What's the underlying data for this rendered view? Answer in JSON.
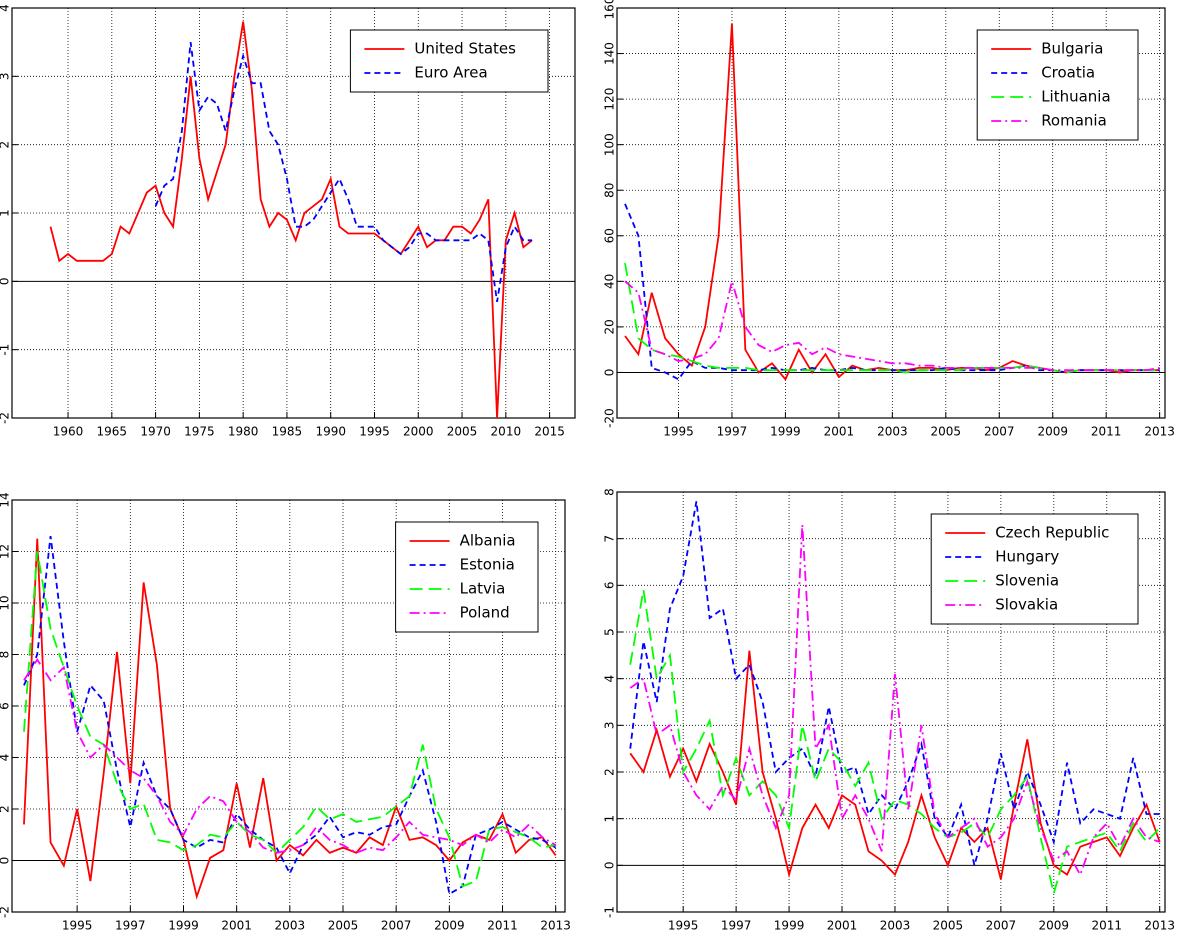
{
  "chart_data": [
    {
      "type": "line",
      "legend": "upper right",
      "grid": true,
      "xlim": [
        1953.6,
        2017.9
      ],
      "ylim": [
        -2,
        4
      ],
      "xticks": [
        1960,
        1965,
        1970,
        1975,
        1980,
        1985,
        1990,
        1995,
        2000,
        2005,
        2010,
        2015
      ],
      "yticks": [
        -2,
        -1,
        0,
        1,
        2,
        3,
        4
      ],
      "x": [
        1958,
        1959,
        1960,
        1961,
        1962,
        1963,
        1964,
        1965,
        1966,
        1967,
        1968,
        1969,
        1970,
        1971,
        1972,
        1973,
        1974,
        1975,
        1976,
        1977,
        1978,
        1979,
        1980,
        1981,
        1982,
        1983,
        1984,
        1985,
        1986,
        1987,
        1988,
        1989,
        1990,
        1991,
        1992,
        1993,
        1994,
        1995,
        1996,
        1997,
        1998,
        1999,
        2000,
        2001,
        2002,
        2003,
        2004,
        2005,
        2006,
        2007,
        2008,
        2009,
        2010,
        2011,
        2012,
        2013
      ],
      "series": [
        {
          "name": "United States",
          "color": "#ff0000",
          "dash": "solid",
          "values": [
            0.8,
            0.3,
            0.4,
            0.3,
            0.3,
            0.3,
            0.3,
            0.4,
            0.8,
            0.7,
            1.0,
            1.3,
            1.4,
            1.0,
            0.8,
            1.8,
            3.0,
            1.8,
            1.2,
            1.6,
            2.0,
            3.0,
            3.8,
            2.8,
            1.2,
            0.8,
            1.0,
            0.9,
            0.6,
            1.0,
            1.1,
            1.2,
            1.5,
            0.8,
            0.7,
            0.7,
            0.7,
            0.7,
            0.6,
            0.5,
            0.4,
            0.6,
            0.8,
            0.5,
            0.6,
            0.6,
            0.8,
            0.8,
            0.7,
            0.9,
            1.2,
            -2.0,
            0.6,
            1.0,
            0.5,
            0.6
          ]
        },
        {
          "name": "Euro Area",
          "color": "#0000ff",
          "dash": "dashed",
          "values": [
            null,
            null,
            null,
            null,
            null,
            null,
            null,
            null,
            null,
            null,
            null,
            null,
            1.1,
            1.4,
            1.5,
            2.2,
            3.5,
            2.5,
            2.7,
            2.6,
            2.2,
            2.8,
            3.3,
            2.9,
            2.9,
            2.2,
            2.0,
            1.5,
            0.8,
            0.8,
            0.9,
            1.1,
            1.3,
            1.5,
            1.2,
            0.8,
            0.8,
            0.8,
            0.6,
            0.5,
            0.4,
            0.5,
            0.7,
            0.7,
            0.6,
            0.6,
            0.6,
            0.6,
            0.6,
            0.7,
            0.6,
            -0.3,
            0.5,
            0.8,
            0.6,
            0.6
          ]
        }
      ]
    },
    {
      "type": "line",
      "legend": "upper right",
      "grid": true,
      "xlim": [
        1992.7,
        2013.2
      ],
      "ylim": [
        -20,
        160
      ],
      "xticks": [
        1995,
        1997,
        1999,
        2001,
        2003,
        2005,
        2007,
        2009,
        2011,
        2013
      ],
      "yticks": [
        -20,
        0,
        20,
        40,
        60,
        80,
        100,
        120,
        140,
        160
      ],
      "x": [
        1993,
        1993.5,
        1994,
        1994.5,
        1995,
        1995.5,
        1996,
        1996.5,
        1997,
        1997.5,
        1998,
        1998.5,
        1999,
        1999.5,
        2000,
        2000.5,
        2001,
        2001.5,
        2002,
        2002.5,
        2003,
        2003.5,
        2004,
        2004.5,
        2005,
        2005.5,
        2006,
        2006.5,
        2007,
        2007.5,
        2008,
        2008.5,
        2009,
        2009.5,
        2010,
        2010.5,
        2011,
        2011.5,
        2012,
        2012.5,
        2013
      ],
      "series": [
        {
          "name": "Bulgaria",
          "color": "#ff0000",
          "dash": "solid",
          "values": [
            16,
            8,
            35,
            15,
            8,
            3,
            20,
            60,
            153,
            10,
            0,
            4,
            -3,
            10,
            0,
            8,
            -2,
            3,
            1,
            2,
            1,
            1,
            2,
            2,
            1,
            2,
            2,
            1,
            2,
            5,
            3,
            2,
            1,
            0,
            1,
            1,
            1,
            0,
            1,
            1,
            1
          ]
        },
        {
          "name": "Croatia",
          "color": "#0000ff",
          "dash": "dashed",
          "values": [
            74,
            60,
            2,
            0,
            -3,
            5,
            2,
            2,
            1,
            1,
            1,
            2,
            1,
            1,
            2,
            1,
            1,
            2,
            1,
            1,
            1,
            1,
            1,
            1,
            2,
            1,
            1,
            1,
            1,
            2,
            3,
            1,
            1,
            0,
            1,
            1,
            1,
            1,
            1,
            1,
            1
          ]
        },
        {
          "name": "Lithuania",
          "color": "#00ff00",
          "dash": "longdash",
          "values": [
            48,
            15,
            10,
            8,
            7,
            5,
            3,
            2,
            2,
            2,
            1,
            1,
            1,
            1,
            1,
            1,
            1,
            1,
            1,
            1,
            1,
            0,
            1,
            1,
            1,
            1,
            2,
            2,
            2,
            2,
            3,
            2,
            1,
            0,
            1,
            1,
            1,
            1,
            1,
            1,
            1
          ]
        },
        {
          "name": "Romania",
          "color": "#ff00ff",
          "dash": "dashdot",
          "values": [
            40,
            35,
            10,
            8,
            5,
            6,
            8,
            15,
            40,
            20,
            12,
            9,
            12,
            13,
            8,
            11,
            8,
            7,
            6,
            5,
            4,
            4,
            3,
            3,
            2,
            2,
            2,
            2,
            2,
            2,
            2,
            2,
            1,
            1,
            1,
            1,
            1,
            1,
            1,
            1,
            2
          ]
        }
      ]
    },
    {
      "type": "line",
      "legend": "upper right",
      "grid": true,
      "xlim": [
        1992.55,
        2013.35
      ],
      "ylim": [
        -2,
        14
      ],
      "xticks": [
        1995,
        1997,
        1999,
        2001,
        2003,
        2005,
        2007,
        2009,
        2011,
        2013
      ],
      "yticks": [
        -2,
        0,
        2,
        4,
        6,
        8,
        10,
        12,
        14
      ],
      "x": [
        1993,
        1993.5,
        1994,
        1994.5,
        1995,
        1995.5,
        1996,
        1996.5,
        1997,
        1997.5,
        1998,
        1998.5,
        1999,
        1999.5,
        2000,
        2000.5,
        2001,
        2001.5,
        2002,
        2002.5,
        2003,
        2003.5,
        2004,
        2004.5,
        2005,
        2005.5,
        2006,
        2006.5,
        2007,
        2007.5,
        2008,
        2008.5,
        2009,
        2009.5,
        2010,
        2010.5,
        2011,
        2011.5,
        2012,
        2012.5,
        2013
      ],
      "series": [
        {
          "name": "Albania",
          "color": "#ff0000",
          "dash": "solid",
          "values": [
            1.4,
            12.5,
            0.7,
            -0.2,
            2.0,
            -0.8,
            3.4,
            8.1,
            3.0,
            10.8,
            7.6,
            2.0,
            0.8,
            -1.4,
            0.1,
            0.4,
            3.0,
            0.5,
            3.2,
            0.0,
            0.6,
            0.2,
            0.8,
            0.3,
            0.5,
            0.3,
            0.9,
            0.6,
            2.1,
            0.8,
            0.9,
            0.6,
            0.0,
            0.7,
            1.0,
            0.8,
            1.8,
            0.3,
            0.8,
            0.9,
            0.2
          ]
        },
        {
          "name": "Estonia",
          "color": "#0000ff",
          "dash": "dashed",
          "values": [
            6.8,
            8.0,
            12.6,
            8.5,
            5.0,
            6.8,
            6.2,
            3.5,
            1.3,
            3.8,
            2.5,
            2.0,
            0.8,
            0.5,
            0.8,
            0.7,
            1.8,
            1.2,
            0.8,
            0.5,
            -0.5,
            0.6,
            1.0,
            1.7,
            0.9,
            1.1,
            1.0,
            1.3,
            1.4,
            2.5,
            3.5,
            1.5,
            -1.3,
            -1.0,
            1.0,
            1.2,
            1.5,
            1.2,
            0.9,
            0.8,
            0.5
          ]
        },
        {
          "name": "Latvia",
          "color": "#00ff00",
          "dash": "longdash",
          "values": [
            5.0,
            12.0,
            9.0,
            7.5,
            6.0,
            4.8,
            4.5,
            3.0,
            2.0,
            2.2,
            0.8,
            0.7,
            0.4,
            0.6,
            1.0,
            0.9,
            1.5,
            1.0,
            0.8,
            0.3,
            0.8,
            1.3,
            2.1,
            1.6,
            1.8,
            1.5,
            1.6,
            1.7,
            2.1,
            2.5,
            4.5,
            2.0,
            0.9,
            -1.0,
            -0.8,
            1.2,
            1.3,
            1.1,
            0.9,
            0.5,
            0.6
          ]
        },
        {
          "name": "Poland",
          "color": "#ff00ff",
          "dash": "dashdot",
          "values": [
            7.0,
            7.8,
            7.0,
            7.5,
            5.0,
            4.0,
            4.5,
            4.0,
            3.5,
            3.2,
            2.5,
            1.5,
            1.0,
            2.0,
            2.5,
            2.3,
            1.5,
            1.1,
            0.5,
            0.3,
            0.4,
            0.6,
            1.3,
            0.8,
            0.6,
            0.3,
            0.5,
            0.4,
            0.9,
            1.5,
            1.0,
            0.9,
            0.8,
            0.6,
            1.0,
            0.7,
            1.2,
            0.9,
            1.4,
            0.9,
            0.6
          ]
        }
      ]
    },
    {
      "type": "line",
      "legend": "upper right",
      "grid": true,
      "xlim": [
        1992.5,
        2013.2
      ],
      "ylim": [
        -1,
        8
      ],
      "xticks": [
        1995,
        1997,
        1999,
        2001,
        2003,
        2005,
        2007,
        2009,
        2011,
        2013
      ],
      "yticks": [
        -1,
        0,
        1,
        2,
        3,
        4,
        5,
        6,
        7,
        8
      ],
      "x": [
        1993,
        1993.5,
        1994,
        1994.5,
        1995,
        1995.5,
        1996,
        1996.5,
        1997,
        1997.5,
        1998,
        1998.5,
        1999,
        1999.5,
        2000,
        2000.5,
        2001,
        2001.5,
        2002,
        2002.5,
        2003,
        2003.5,
        2004,
        2004.5,
        2005,
        2005.5,
        2006,
        2006.5,
        2007,
        2007.5,
        2008,
        2008.5,
        2009,
        2009.5,
        2010,
        2010.5,
        2011,
        2011.5,
        2012,
        2012.5,
        2013
      ],
      "series": [
        {
          "name": "Czech Republic",
          "color": "#ff0000",
          "dash": "solid",
          "values": [
            2.4,
            2.0,
            2.9,
            1.9,
            2.5,
            1.8,
            2.6,
            2.0,
            1.3,
            4.6,
            2.0,
            1.0,
            -0.2,
            0.8,
            1.3,
            0.8,
            1.5,
            1.3,
            0.3,
            0.1,
            -0.2,
            0.5,
            1.5,
            0.6,
            0.0,
            0.8,
            0.5,
            0.8,
            -0.3,
            1.3,
            2.7,
            0.9,
            0.0,
            -0.2,
            0.4,
            0.5,
            0.6,
            0.2,
            0.8,
            1.3,
            0.5
          ]
        },
        {
          "name": "Hungary",
          "color": "#0000ff",
          "dash": "dashed",
          "values": [
            2.5,
            4.8,
            3.5,
            5.5,
            6.2,
            7.8,
            5.3,
            5.5,
            4.0,
            4.3,
            3.5,
            2.0,
            2.3,
            2.5,
            1.9,
            3.4,
            2.0,
            2.1,
            1.1,
            1.5,
            1.2,
            1.8,
            2.6,
            1.0,
            0.6,
            1.3,
            0.0,
            1.0,
            2.4,
            1.2,
            2.0,
            1.3,
            0.5,
            2.2,
            0.9,
            1.2,
            1.1,
            1.0,
            2.3,
            1.1,
            1.1
          ]
        },
        {
          "name": "Slovenia",
          "color": "#00ff00",
          "dash": "longdash",
          "values": [
            4.3,
            5.9,
            4.0,
            4.5,
            2.0,
            2.5,
            3.1,
            1.5,
            2.3,
            1.5,
            1.8,
            1.5,
            0.8,
            3.0,
            1.8,
            2.5,
            2.2,
            1.7,
            2.2,
            1.0,
            1.4,
            1.3,
            1.1,
            0.8,
            0.6,
            0.7,
            0.9,
            0.6,
            1.2,
            1.5,
            1.9,
            0.6,
            -0.6,
            0.4,
            0.5,
            0.6,
            0.7,
            0.3,
            0.9,
            0.5,
            0.8
          ]
        },
        {
          "name": "Slovakia",
          "color": "#ff00ff",
          "dash": "dashdot",
          "values": [
            3.8,
            4.0,
            2.8,
            3.0,
            2.0,
            1.5,
            1.2,
            1.7,
            1.4,
            2.5,
            1.5,
            0.8,
            1.5,
            7.3,
            2.5,
            3.0,
            1.0,
            1.5,
            1.0,
            0.3,
            4.1,
            1.2,
            3.0,
            1.1,
            0.6,
            0.8,
            1.0,
            0.4,
            0.6,
            1.0,
            1.8,
            0.8,
            0.1,
            0.3,
            -0.2,
            0.6,
            0.9,
            0.4,
            1.0,
            0.6,
            0.5
          ]
        }
      ]
    }
  ]
}
